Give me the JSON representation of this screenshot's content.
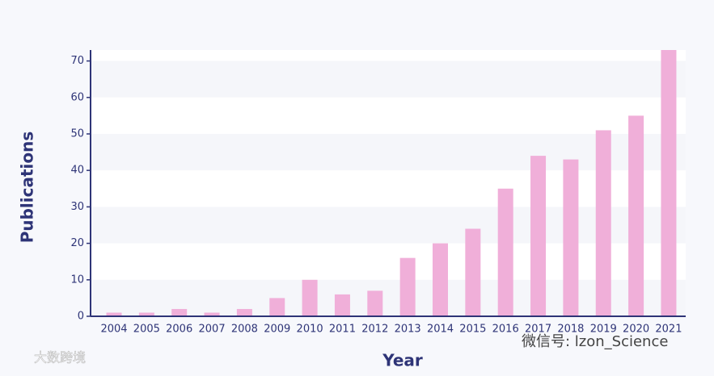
{
  "chart_data": {
    "type": "bar",
    "x_label": "Year",
    "y_label": "Publications",
    "categories": [
      "2004",
      "2005",
      "2006",
      "2007",
      "2008",
      "2009",
      "2010",
      "2011",
      "2012",
      "2013",
      "2014",
      "2015",
      "2016",
      "2017",
      "2018",
      "2019",
      "2020",
      "2021"
    ],
    "values": [
      1,
      1,
      2,
      1,
      2,
      5,
      10,
      6,
      7,
      16,
      20,
      24,
      35,
      44,
      43,
      51,
      55,
      73
    ],
    "color": "#f0afd9",
    "ylim": [
      0,
      73
    ],
    "yticks": [
      0,
      10,
      20,
      30,
      40,
      50,
      60,
      70
    ],
    "grid": true,
    "watermarks": [
      "大数跨境",
      "微信号: lzon_Science"
    ]
  }
}
